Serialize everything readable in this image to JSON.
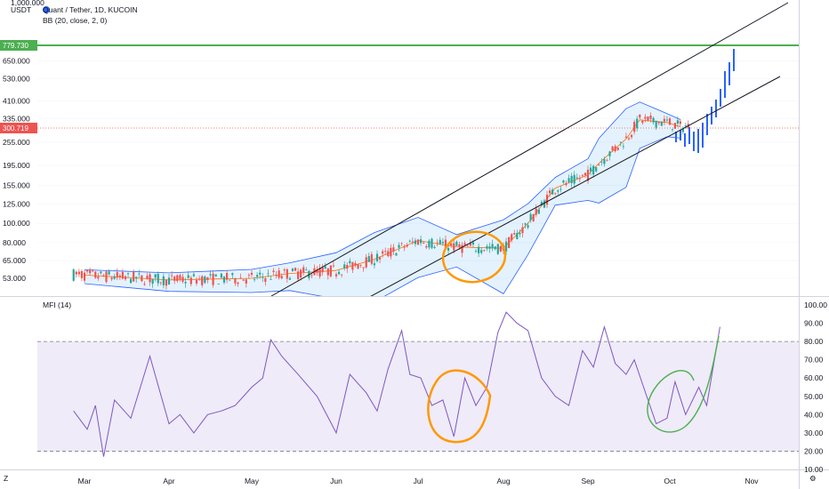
{
  "header": {
    "symbol_title": "Quant / Tether, 1D, KUCOIN",
    "indicator_bb": "BB (20, close, 2, 0)",
    "indicator_mfi": "MFI (14)",
    "currency_top": "1,000.000",
    "currency": "USDT"
  },
  "colors": {
    "up": "#26a69a",
    "down": "#ef5350",
    "bb_band": "#2962ff",
    "bb_fill": "#2196f3",
    "bb_basis": "#ff6d00",
    "mfi_line": "#7e57c2",
    "mfi_fill": "#7e57c2",
    "horizontal_line": "#4caf50",
    "annotation_orange": "#ff9800",
    "annotation_green": "#4caf50",
    "forecast": "#2962ff"
  },
  "price_axis": {
    "labels": [
      "779.730",
      "650.000",
      "530.000",
      "410.000",
      "335.000",
      "300.719",
      "255.000",
      "195.000",
      "155.000",
      "125.000",
      "100.000",
      "80.000",
      "65.000",
      "53.000"
    ],
    "current_price": "300.719",
    "line_price": "779.730"
  },
  "mfi_axis": {
    "labels": [
      "100.00",
      "90.00",
      "80.00",
      "70.00",
      "60.00",
      "50.00",
      "40.00",
      "30.00",
      "20.00",
      "10.00"
    ],
    "upper_band": 80,
    "lower_band": 20
  },
  "time_axis": {
    "labels": [
      "Mar",
      "Apr",
      "May",
      "Jun",
      "Jul",
      "Aug",
      "Sep",
      "Oct",
      "Nov"
    ]
  },
  "chart_data": [
    {
      "type": "line",
      "title": "Quant / Tether, 1D, KUCOIN",
      "scale": "log",
      "series": [
        {
          "name": "BB (20, close, 2, 0)",
          "points": [
            [
              "2021-03-01",
              55
            ],
            [
              "2021-04-01",
              52
            ],
            [
              "2021-05-01",
              53
            ],
            [
              "2021-05-15",
              56
            ],
            [
              "2021-06-01",
              58
            ],
            [
              "2021-06-15",
              66
            ],
            [
              "2021-07-01",
              82
            ],
            [
              "2021-07-15",
              76
            ],
            [
              "2021-08-01",
              75
            ],
            [
              "2021-08-10",
              100
            ],
            [
              "2021-08-20",
              150
            ],
            [
              "2021-09-01",
              175
            ],
            [
              "2021-09-05",
              200
            ],
            [
              "2021-09-15",
              265
            ],
            [
              "2021-09-20",
              330
            ],
            [
              "2021-09-30",
              320
            ],
            [
              "2021-10-05",
              305
            ]
          ]
        }
      ],
      "ylim": [
        48,
        1000
      ],
      "horizontal_line": 779.73
    },
    {
      "type": "line",
      "title": "MFI (14)",
      "ylim": [
        10,
        100
      ],
      "bands": [
        20,
        80
      ],
      "series": [
        {
          "name": "MFI (14)",
          "points": [
            [
              "2021-02-25",
              42
            ],
            [
              "2021-02-28",
              36
            ],
            [
              "2021-03-02",
              32
            ],
            [
              "2021-03-05",
              45
            ],
            [
              "2021-03-08",
              17
            ],
            [
              "2021-03-12",
              48
            ],
            [
              "2021-03-18",
              38
            ],
            [
              "2021-03-25",
              72
            ],
            [
              "2021-04-01",
              35
            ],
            [
              "2021-04-05",
              40
            ],
            [
              "2021-04-10",
              30
            ],
            [
              "2021-04-15",
              40
            ],
            [
              "2021-04-20",
              42
            ],
            [
              "2021-04-25",
              45
            ],
            [
              "2021-05-01",
              55
            ],
            [
              "2021-05-05",
              60
            ],
            [
              "2021-05-08",
              81
            ],
            [
              "2021-05-12",
              72
            ],
            [
              "2021-05-18",
              62
            ],
            [
              "2021-05-25",
              50
            ],
            [
              "2021-06-01",
              30
            ],
            [
              "2021-06-06",
              62
            ],
            [
              "2021-06-12",
              52
            ],
            [
              "2021-06-16",
              42
            ],
            [
              "2021-06-20",
              65
            ],
            [
              "2021-06-25",
              86
            ],
            [
              "2021-06-28",
              62
            ],
            [
              "2021-07-02",
              60
            ],
            [
              "2021-07-06",
              45
            ],
            [
              "2021-07-10",
              48
            ],
            [
              "2021-07-14",
              28
            ],
            [
              "2021-07-18",
              60
            ],
            [
              "2021-07-22",
              45
            ],
            [
              "2021-07-26",
              55
            ],
            [
              "2021-07-30",
              85
            ],
            [
              "2021-08-02",
              96
            ],
            [
              "2021-08-06",
              90
            ],
            [
              "2021-08-10",
              86
            ],
            [
              "2021-08-15",
              60
            ],
            [
              "2021-08-20",
              50
            ],
            [
              "2021-08-25",
              45
            ],
            [
              "2021-08-30",
              75
            ],
            [
              "2021-09-03",
              66
            ],
            [
              "2021-09-07",
              88
            ],
            [
              "2021-09-11",
              68
            ],
            [
              "2021-09-15",
              62
            ],
            [
              "2021-09-18",
              70
            ],
            [
              "2021-09-23",
              48
            ],
            [
              "2021-09-26",
              35
            ],
            [
              "2021-09-30",
              38
            ],
            [
              "2021-10-03",
              58
            ],
            [
              "2021-10-07",
              40
            ],
            [
              "2021-10-12",
              55
            ],
            [
              "2021-10-15",
              45
            ],
            [
              "2021-10-20",
              88
            ]
          ]
        }
      ]
    }
  ]
}
